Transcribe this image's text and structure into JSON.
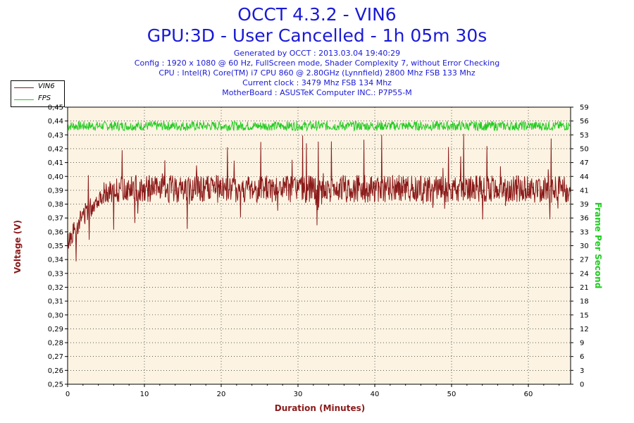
{
  "header": {
    "title": "OCCT 4.3.2 - VIN6",
    "subtitle": "GPU:3D - User Cancelled - 1h 05m 30s",
    "info": [
      "Generated by OCCT : 2013.03.04 19:40:29",
      "Config : 1920 x 1080 @ 60 Hz, FullScreen mode, Shader Complexity 7, without Error Checking",
      "CPU : Intel(R) Core(TM) i7 CPU 860 @ 2.80GHz (Lynnfield) 2800 Mhz FSB 133 Mhz",
      "Current clock : 3479 Mhz FSB 134 Mhz",
      "MotherBoard : ASUSTeK Computer INC.: P7P55-M"
    ]
  },
  "legend": {
    "items": [
      {
        "label": "VIN6",
        "color": "#8b1a1a"
      },
      {
        "label": "FPS",
        "color": "#22cc22"
      }
    ]
  },
  "chart_data": {
    "type": "line",
    "title": "OCCT 4.3.2 - VIN6",
    "xlabel": "Duration (Minutes)",
    "ylabel_left": "Voltage (V)",
    "ylabel_right": "Frame Per Second",
    "xlim": [
      0,
      65.5
    ],
    "ylim_left": [
      0.25,
      0.45
    ],
    "ylim_right": [
      0,
      59
    ],
    "x_ticks": [
      "0",
      "10",
      "20",
      "30",
      "40",
      "50",
      "60"
    ],
    "y_left_ticks": [
      "0,25",
      "0,26",
      "0,27",
      "0,28",
      "0,29",
      "0,30",
      "0,31",
      "0,32",
      "0,33",
      "0,34",
      "0,35",
      "0,36",
      "0,37",
      "0,38",
      "0,39",
      "0,40",
      "0,41",
      "0,42",
      "0,43",
      "0,44",
      "0,45"
    ],
    "y_right_ticks": [
      "0",
      "3",
      "6",
      "9",
      "12",
      "15",
      "18",
      "21",
      "24",
      "27",
      "30",
      "33",
      "36",
      "39",
      "41",
      "44",
      "47",
      "50",
      "53",
      "56",
      "59"
    ],
    "grid": true,
    "legend_position": "top-left",
    "series": [
      {
        "name": "VIN6",
        "color": "#8b1a1a",
        "axis": "left",
        "x": [
          0,
          0.5,
          1,
          1.5,
          2,
          3,
          4,
          5,
          6,
          7,
          8,
          10,
          12,
          15,
          20,
          25,
          30,
          35,
          40,
          45,
          50,
          55,
          60,
          65.5
        ],
        "y": [
          0.352,
          0.356,
          0.362,
          0.366,
          0.37,
          0.375,
          0.38,
          0.382,
          0.384,
          0.385,
          0.386,
          0.387,
          0.388,
          0.389,
          0.389,
          0.389,
          0.39,
          0.39,
          0.39,
          0.39,
          0.391,
          0.391,
          0.391,
          0.391
        ],
        "band_low": [
          0.345,
          0.35,
          0.355,
          0.36,
          0.364,
          0.37,
          0.378,
          0.381,
          0.381,
          0.381,
          0.381,
          0.381,
          0.381,
          0.381,
          0.381,
          0.381,
          0.381,
          0.381,
          0.381,
          0.381,
          0.381,
          0.381,
          0.381,
          0.381
        ],
        "band_high": [
          0.36,
          0.365,
          0.37,
          0.375,
          0.38,
          0.385,
          0.39,
          0.395,
          0.398,
          0.4,
          0.401,
          0.401,
          0.401,
          0.401,
          0.401,
          0.401,
          0.401,
          0.401,
          0.401,
          0.401,
          0.401,
          0.401,
          0.401,
          0.401
        ]
      },
      {
        "name": "FPS",
        "color": "#22cc22",
        "axis": "right",
        "x": [
          0,
          65.5
        ],
        "y": [
          55,
          55
        ],
        "band_low": [
          54,
          54
        ],
        "band_high": [
          56,
          56
        ]
      }
    ]
  }
}
